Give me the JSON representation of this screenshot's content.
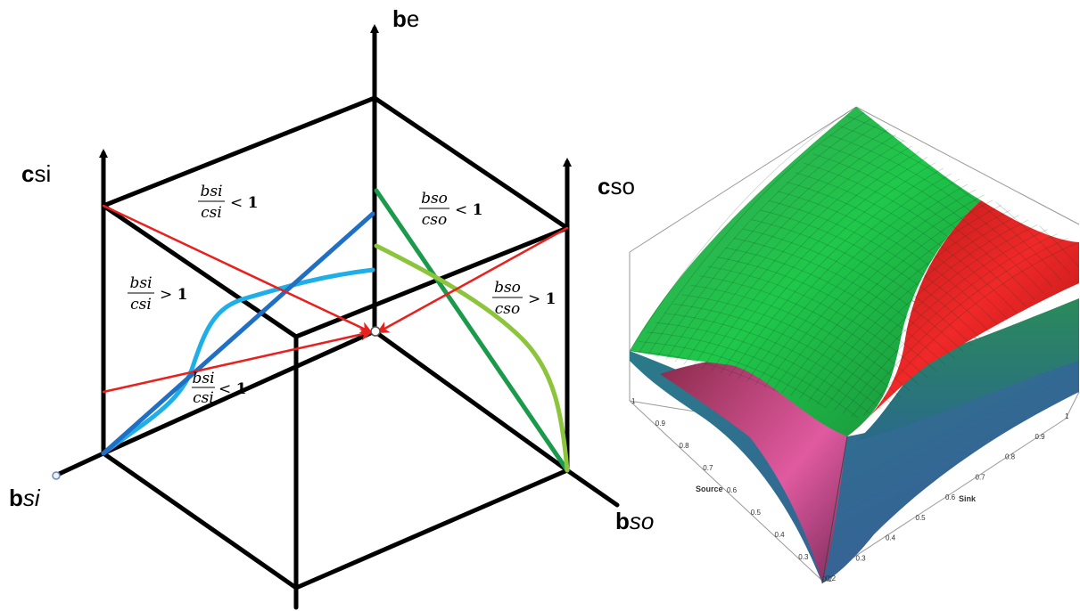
{
  "diagram": {
    "axes": {
      "be": {
        "bold": "b",
        "rest": "e",
        "rest_italic": false
      },
      "csi": {
        "bold": "c",
        "rest": "si",
        "rest_italic": false
      },
      "cso": {
        "bold": "c",
        "rest": "so",
        "rest_italic": false
      },
      "bsi": {
        "bold": "b",
        "rest": "si",
        "rest_italic": true
      },
      "bso": {
        "bold": "b",
        "rest": "so",
        "rest_italic": true
      }
    },
    "regions": [
      {
        "id": "left-top",
        "num": "bsi",
        "den": "csi",
        "rel": "<",
        "rhs": "1"
      },
      {
        "id": "left-mid",
        "num": "bsi",
        "den": "csi",
        "rel": ">",
        "rhs": "1"
      },
      {
        "id": "left-low",
        "num": "bsi",
        "den": "csi",
        "rel": "<",
        "rhs": "1"
      },
      {
        "id": "right-top",
        "num": "bso",
        "den": "cso",
        "rel": "<",
        "rhs": "1"
      },
      {
        "id": "right-mid",
        "num": "bso",
        "den": "cso",
        "rel": ">",
        "rhs": "1"
      }
    ],
    "colors": {
      "frame": "#000000",
      "red": "#e8201e",
      "dark_blue": "#1f6fc4",
      "light_blue": "#1eaee8",
      "dark_green": "#1a9a4a",
      "light_green": "#8cc43c"
    }
  },
  "plot3d": {
    "source_label": "Source",
    "sink_label": "Sink",
    "source_ticks": [
      "1",
      "0.9",
      "0.8",
      "0.7",
      "0.6",
      "0.5",
      "0.4",
      "0.3",
      "0.2"
    ],
    "sink_ticks": [
      "0.2",
      "0.3",
      "0.4",
      "0.5",
      "0.6",
      "0.7",
      "0.8",
      "0.9",
      "1"
    ],
    "colors": {
      "green_surface": "#1fa83a",
      "red_surface": "#d8212a",
      "pink_surface": "#c0407a"
    }
  }
}
